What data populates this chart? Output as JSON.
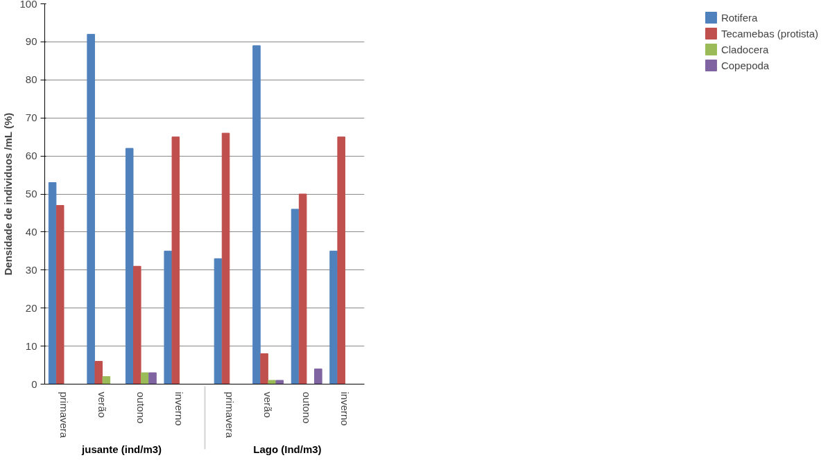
{
  "chart_data": {
    "type": "bar",
    "ylabel": "Densidade de individuos /mL (%)",
    "categories": [
      "primavera",
      "verão",
      "outono",
      "inverno",
      "primavera",
      "verão",
      "outono",
      "inverno"
    ],
    "annotations": [
      "jusante (ind/m3)",
      "Lago (Ind/m3)"
    ],
    "series": [
      {
        "name": "Rotifera",
        "color": "#4f81bd",
        "values": [
          53,
          92,
          62,
          35,
          33,
          89,
          46,
          35
        ]
      },
      {
        "name": "Tecamebas (protista)",
        "color": "#c0504d",
        "values": [
          47,
          6,
          31,
          65,
          66,
          8,
          50,
          65
        ]
      },
      {
        "name": "Cladocera",
        "color": "#9bbb59",
        "values": [
          0,
          2,
          3,
          0,
          0,
          1,
          0,
          0
        ]
      },
      {
        "name": "Copepoda",
        "color": "#8064a2",
        "values": [
          0,
          0,
          3,
          0,
          0,
          1,
          4,
          0
        ]
      }
    ],
    "ylim": [
      0,
      100
    ],
    "yticks": [
      0,
      10,
      20,
      30,
      40,
      50,
      60,
      70,
      80,
      90,
      100
    ],
    "grid": "y",
    "legend": "right"
  }
}
